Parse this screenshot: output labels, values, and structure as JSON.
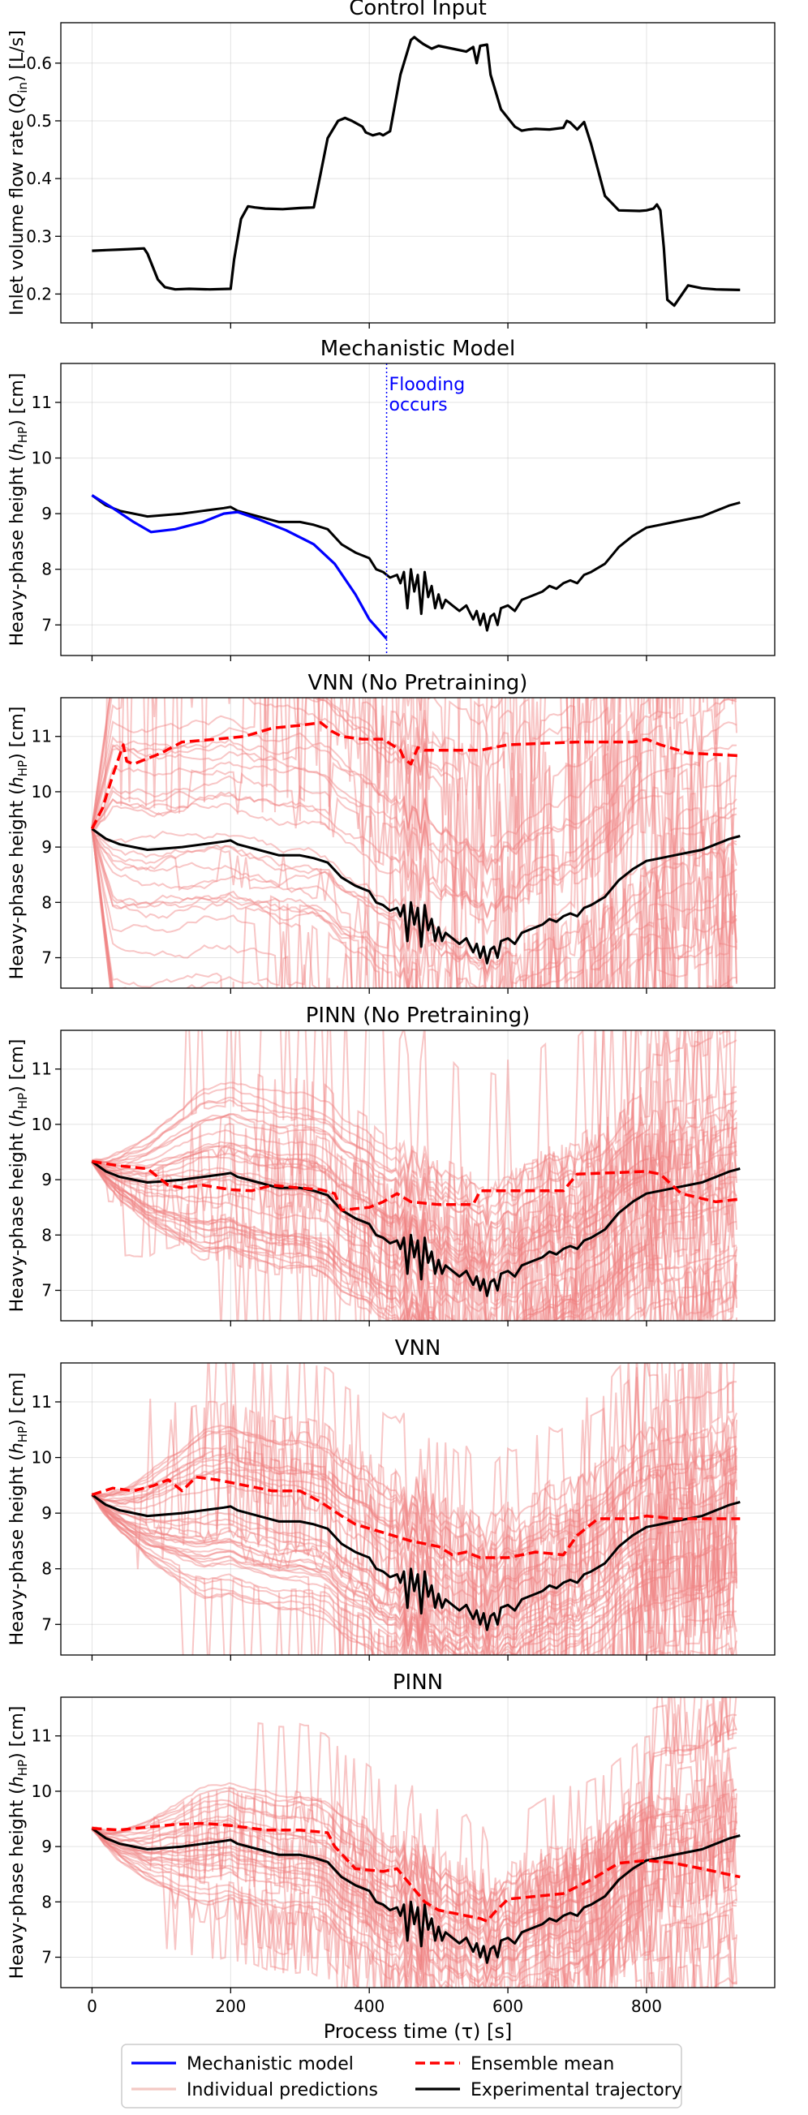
{
  "chart_data": [
    {
      "type": "line",
      "title": "Control Input",
      "ylabel": "Inlet volume flow rate (Qin) [L/s]",
      "ylabel_main": "Inlet volume flow rate (",
      "ylabel_sym": "Q",
      "ylabel_sub": "in",
      "ylabel_unit": ") [L/s]",
      "xlim": [
        -45,
        985
      ],
      "ylim": [
        0.15,
        0.67
      ],
      "yticks": [
        0.2,
        0.3,
        0.4,
        0.5,
        0.6
      ],
      "ytick_labels": [
        "0.2",
        "0.3",
        "0.4",
        "0.5",
        "0.6"
      ],
      "series": [
        {
          "name": "Control input",
          "color": "#000000",
          "x": [
            0,
            20,
            40,
            60,
            75,
            80,
            95,
            105,
            120,
            140,
            170,
            200,
            205,
            215,
            225,
            235,
            250,
            275,
            300,
            320,
            330,
            340,
            355,
            365,
            375,
            390,
            395,
            405,
            415,
            420,
            430,
            445,
            460,
            465,
            470,
            478,
            490,
            500,
            520,
            540,
            550,
            555,
            560,
            570,
            575,
            590,
            610,
            620,
            630,
            640,
            660,
            680,
            685,
            690,
            700,
            710,
            720,
            740,
            760,
            790,
            800,
            810,
            815,
            820,
            825,
            830,
            840,
            860,
            880,
            900,
            935
          ],
          "y": [
            0.275,
            0.276,
            0.277,
            0.278,
            0.279,
            0.27,
            0.225,
            0.212,
            0.208,
            0.209,
            0.208,
            0.209,
            0.26,
            0.33,
            0.352,
            0.35,
            0.348,
            0.347,
            0.349,
            0.35,
            0.41,
            0.47,
            0.5,
            0.505,
            0.5,
            0.49,
            0.48,
            0.475,
            0.478,
            0.475,
            0.482,
            0.58,
            0.64,
            0.645,
            0.64,
            0.633,
            0.625,
            0.63,
            0.625,
            0.62,
            0.628,
            0.6,
            0.63,
            0.632,
            0.58,
            0.52,
            0.49,
            0.483,
            0.485,
            0.486,
            0.485,
            0.488,
            0.5,
            0.497,
            0.485,
            0.498,
            0.46,
            0.37,
            0.345,
            0.344,
            0.345,
            0.348,
            0.355,
            0.345,
            0.28,
            0.19,
            0.18,
            0.215,
            0.21,
            0.208,
            0.207
          ]
        }
      ]
    },
    {
      "type": "line",
      "title": "Mechanistic Model",
      "ylabel": "Heavy-phase height (hHP) [cm]",
      "ylabel_main": "Heavy-phase height (",
      "ylabel_sym": "h",
      "ylabel_sub": "HP",
      "ylabel_unit": ") [cm]",
      "xlim": [
        -45,
        985
      ],
      "ylim": [
        6.45,
        11.7
      ],
      "yticks": [
        7,
        8,
        9,
        10,
        11
      ],
      "ytick_labels": [
        "7",
        "8",
        "9",
        "10",
        "11"
      ],
      "annotation": {
        "text_line1": "Flooding",
        "text_line2": "occurs",
        "x": 425,
        "y_top": 11.7,
        "color": "#0000ff"
      },
      "series": [
        {
          "name": "Mechanistic model",
          "color": "#0000ff",
          "x": [
            0,
            30,
            60,
            85,
            120,
            160,
            190,
            210,
            240,
            280,
            320,
            350,
            380,
            400,
            425
          ],
          "y": [
            9.33,
            9.1,
            8.85,
            8.67,
            8.72,
            8.85,
            9.0,
            9.03,
            8.9,
            8.7,
            8.45,
            8.1,
            7.55,
            7.1,
            6.75
          ]
        }
      ],
      "experimental": true
    },
    {
      "type": "line",
      "title": "VNN (No Pretraining)",
      "ylabel": "Heavy-phase height (hHP) [cm]",
      "ylabel_main": "Heavy-phase height (",
      "ylabel_sym": "h",
      "ylabel_sub": "HP",
      "ylabel_unit": ") [cm]",
      "xlim": [
        -45,
        985
      ],
      "ylim": [
        6.45,
        11.7
      ],
      "yticks": [
        7,
        8,
        9,
        10,
        11
      ],
      "ytick_labels": [
        "7",
        "8",
        "9",
        "10",
        "11"
      ],
      "series": [
        {
          "name": "Ensemble mean",
          "color": "#ff0000",
          "x": [
            0,
            15,
            30,
            45,
            50,
            60,
            80,
            100,
            130,
            180,
            220,
            260,
            300,
            330,
            345,
            360,
            390,
            420,
            445,
            450,
            460,
            470,
            480,
            500,
            560,
            600,
            700,
            780,
            800,
            820,
            860,
            935
          ],
          "y": [
            9.33,
            9.7,
            10.3,
            10.85,
            10.55,
            10.5,
            10.6,
            10.7,
            10.9,
            10.95,
            11.0,
            11.15,
            11.2,
            11.25,
            11.1,
            11.0,
            10.95,
            10.95,
            10.75,
            10.6,
            10.5,
            10.8,
            10.75,
            10.75,
            10.75,
            10.85,
            10.9,
            10.9,
            10.95,
            10.85,
            10.7,
            10.65
          ]
        }
      ],
      "ensemble_seed": 11,
      "ensemble_style": "wild",
      "experimental": true
    },
    {
      "type": "line",
      "title": "PINN (No Pretraining)",
      "ylabel": "Heavy-phase height (hHP) [cm]",
      "ylabel_main": "Heavy-phase height (",
      "ylabel_sym": "h",
      "ylabel_sub": "HP",
      "ylabel_unit": ") [cm]",
      "xlim": [
        -45,
        985
      ],
      "ylim": [
        6.45,
        11.7
      ],
      "yticks": [
        7,
        8,
        9,
        10,
        11
      ],
      "ytick_labels": [
        "7",
        "8",
        "9",
        "10",
        "11"
      ],
      "series": [
        {
          "name": "Ensemble mean",
          "color": "#ff0000",
          "x": [
            0,
            40,
            80,
            110,
            130,
            160,
            200,
            230,
            260,
            300,
            330,
            350,
            360,
            400,
            420,
            440,
            460,
            500,
            550,
            560,
            600,
            680,
            700,
            800,
            820,
            850,
            900,
            935
          ],
          "y": [
            9.33,
            9.25,
            9.2,
            8.9,
            8.85,
            8.9,
            8.82,
            8.8,
            8.9,
            8.85,
            8.82,
            8.75,
            8.45,
            8.5,
            8.6,
            8.75,
            8.6,
            8.55,
            8.55,
            8.8,
            8.8,
            8.8,
            9.1,
            9.15,
            9.1,
            8.75,
            8.6,
            8.65
          ]
        }
      ],
      "ensemble_seed": 23,
      "ensemble_style": "semi",
      "experimental": true
    },
    {
      "type": "line",
      "title": "VNN",
      "ylabel": "Heavy-phase height (hHP) [cm]",
      "ylabel_main": "Heavy-phase height (",
      "ylabel_sym": "h",
      "ylabel_sub": "HP",
      "ylabel_unit": ") [cm]",
      "xlim": [
        -45,
        985
      ],
      "ylim": [
        6.45,
        11.7
      ],
      "yticks": [
        7,
        8,
        9,
        10,
        11
      ],
      "ytick_labels": [
        "7",
        "8",
        "9",
        "10",
        "11"
      ],
      "series": [
        {
          "name": "Ensemble mean",
          "color": "#ff0000",
          "x": [
            0,
            30,
            60,
            90,
            110,
            130,
            150,
            180,
            200,
            260,
            300,
            330,
            360,
            380,
            420,
            460,
            500,
            520,
            540,
            560,
            600,
            640,
            680,
            700,
            730,
            780,
            800,
            840,
            900,
            935
          ],
          "y": [
            9.33,
            9.45,
            9.4,
            9.5,
            9.6,
            9.4,
            9.65,
            9.6,
            9.55,
            9.4,
            9.4,
            9.2,
            8.95,
            8.8,
            8.65,
            8.5,
            8.4,
            8.25,
            8.3,
            8.2,
            8.2,
            8.3,
            8.25,
            8.6,
            8.9,
            8.9,
            8.95,
            8.9,
            8.9,
            8.9
          ]
        }
      ],
      "ensemble_seed": 37,
      "ensemble_style": "semi",
      "experimental": true
    },
    {
      "type": "line",
      "title": "PINN",
      "ylabel": "Heavy-phase height (hHP) [cm]",
      "ylabel_main": "Heavy-phase height (",
      "ylabel_sym": "h",
      "ylabel_sub": "HP",
      "ylabel_unit": ") [cm]",
      "xlim": [
        -45,
        985
      ],
      "ylim": [
        6.45,
        11.7
      ],
      "yticks": [
        7,
        8,
        9,
        10,
        11
      ],
      "ytick_labels": [
        "7",
        "8",
        "9",
        "10",
        "11"
      ],
      "xticks": [
        0,
        200,
        400,
        600,
        800
      ],
      "xtick_labels": [
        "0",
        "200",
        "400",
        "600",
        "800"
      ],
      "xlabel": "Process time (τ) [s]",
      "series": [
        {
          "name": "Ensemble mean",
          "color": "#ff0000",
          "x": [
            0,
            40,
            80,
            120,
            160,
            200,
            250,
            300,
            340,
            350,
            380,
            420,
            440,
            460,
            480,
            500,
            540,
            560,
            570,
            580,
            600,
            640,
            680,
            720,
            760,
            800,
            840,
            880,
            935
          ],
          "y": [
            9.33,
            9.3,
            9.35,
            9.4,
            9.42,
            9.38,
            9.3,
            9.3,
            9.25,
            9.0,
            8.6,
            8.55,
            8.6,
            8.3,
            8.0,
            7.85,
            7.75,
            7.7,
            7.65,
            7.8,
            8.05,
            8.1,
            8.15,
            8.4,
            8.7,
            8.75,
            8.7,
            8.6,
            8.45
          ]
        }
      ],
      "ensemble_seed": 53,
      "ensemble_style": "calm",
      "experimental": true
    }
  ],
  "experimental_trajectory": {
    "name": "Experimental trajectory",
    "x": [
      0,
      20,
      40,
      60,
      80,
      100,
      130,
      160,
      190,
      200,
      210,
      240,
      270,
      300,
      320,
      340,
      360,
      380,
      390,
      400,
      410,
      420,
      430,
      440,
      445,
      450,
      455,
      460,
      465,
      470,
      475,
      480,
      485,
      490,
      495,
      500,
      505,
      510,
      520,
      530,
      540,
      550,
      555,
      560,
      565,
      570,
      575,
      580,
      585,
      590,
      600,
      610,
      620,
      630,
      640,
      650,
      660,
      670,
      680,
      690,
      700,
      710,
      720,
      740,
      760,
      780,
      800,
      820,
      840,
      860,
      880,
      900,
      920,
      935
    ],
    "y": [
      9.33,
      9.15,
      9.05,
      9.0,
      8.95,
      8.97,
      9.0,
      9.05,
      9.1,
      9.12,
      9.05,
      8.95,
      8.85,
      8.85,
      8.8,
      8.72,
      8.45,
      8.3,
      8.25,
      8.2,
      8.0,
      7.95,
      7.85,
      7.9,
      7.75,
      7.95,
      7.3,
      8.0,
      7.6,
      7.9,
      7.2,
      7.95,
      7.5,
      7.7,
      7.3,
      7.55,
      7.3,
      7.45,
      7.35,
      7.25,
      7.35,
      7.1,
      7.25,
      7.0,
      7.2,
      6.9,
      7.15,
      7.2,
      7.0,
      7.3,
      7.35,
      7.25,
      7.45,
      7.5,
      7.55,
      7.6,
      7.7,
      7.65,
      7.75,
      7.8,
      7.75,
      7.9,
      7.95,
      8.1,
      8.4,
      8.6,
      8.75,
      8.8,
      8.85,
      8.9,
      8.95,
      9.05,
      9.15,
      9.2
    ]
  },
  "legend": {
    "items": [
      {
        "label": "Mechanistic model",
        "color": "#0000ff",
        "style": "solid"
      },
      {
        "label": "Ensemble mean",
        "color": "#ff0000",
        "style": "dashed"
      },
      {
        "label": "Individual predictions",
        "color": "#f3c9c4",
        "style": "solid"
      },
      {
        "label": "Experimental trajectory",
        "color": "#000000",
        "style": "solid"
      }
    ]
  },
  "colors": {
    "experimental": "#000000",
    "individual": "#f08080",
    "mean": "#ff0000",
    "mechanistic": "#0000ff"
  }
}
